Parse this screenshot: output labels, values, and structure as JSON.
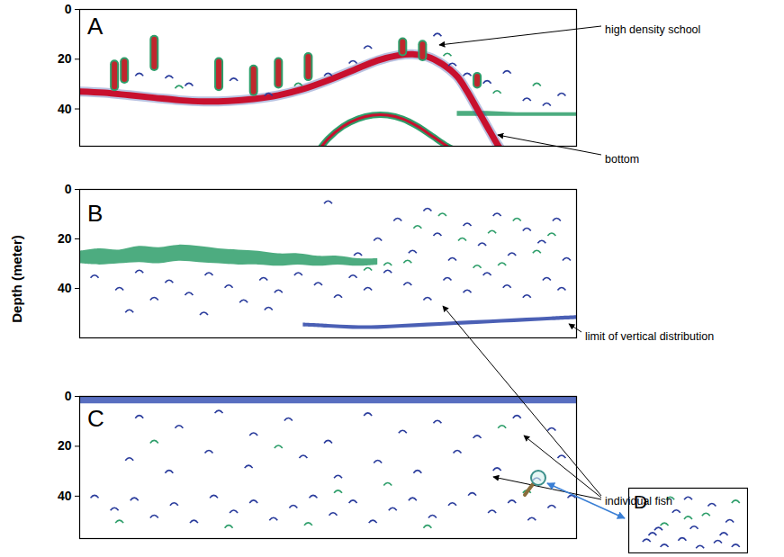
{
  "ylabel": "Depth (meter)",
  "annotations": [
    {
      "text": "high density school",
      "panel": "A"
    },
    {
      "text": "bottom",
      "panel": "A"
    },
    {
      "text": "limit of vertical distribution",
      "panel": "B"
    },
    {
      "text": "individual fish",
      "panel": "B"
    }
  ],
  "chart_data": [
    {
      "type": "echogram",
      "title": "A",
      "xlim": [
        0,
        100
      ],
      "ylim": [
        0,
        55
      ],
      "yticks": [
        0,
        20,
        40
      ],
      "tick_labels": "y",
      "bands": [
        {
          "color": "#2e9e6a",
          "x": [
            76,
            82,
            88,
            94,
            100
          ],
          "top": [
            41,
            41,
            41.5,
            41.5,
            41.5
          ],
          "bottom": [
            43,
            43,
            43,
            43,
            43
          ]
        }
      ],
      "lines": [
        {
          "color": "#c8102e",
          "line_style": "bold",
          "values": [
            [
              0,
              33
            ],
            [
              5,
              33.5
            ],
            [
              10,
              34.5
            ],
            [
              15,
              35.5
            ],
            [
              20,
              36.5
            ],
            [
              25,
              37
            ],
            [
              30,
              36.8
            ],
            [
              35,
              36
            ],
            [
              40,
              34.5
            ],
            [
              45,
              32
            ],
            [
              50,
              28.5
            ],
            [
              55,
              24.5
            ],
            [
              60,
              20.5
            ],
            [
              64,
              18.5
            ],
            [
              67,
              18
            ],
            [
              70,
              19
            ],
            [
              73,
              22
            ],
            [
              76,
              27
            ],
            [
              78,
              33
            ],
            [
              80,
              40
            ],
            [
              82,
              47
            ],
            [
              84,
              54
            ],
            [
              85,
              57
            ]
          ]
        },
        {
          "color": "#c8102e",
          "line_style": "solid",
          "values": [
            [
              48,
              57
            ],
            [
              50,
              52
            ],
            [
              53,
              47
            ],
            [
              56,
              44
            ],
            [
              59,
              42.5
            ],
            [
              62,
              42.5
            ],
            [
              65,
              44
            ],
            [
              68,
              47
            ],
            [
              71,
              51
            ],
            [
              74,
              55
            ],
            [
              76,
              57
            ]
          ]
        }
      ],
      "schools": {
        "color": "#c0272d",
        "values": [
          [
            7,
            22,
            31
          ],
          [
            9,
            21,
            28
          ],
          [
            15,
            12,
            23
          ],
          [
            28,
            21,
            31
          ],
          [
            35,
            24,
            33
          ],
          [
            40,
            21,
            30
          ],
          [
            46,
            19,
            27
          ],
          [
            65,
            13,
            17
          ],
          [
            69,
            14,
            19
          ],
          [
            80,
            27,
            30
          ]
        ]
      },
      "fish": [
        {
          "color": "#2a3c9c",
          "marker": "arc",
          "points": [
            [
              12,
              26
            ],
            [
              18,
              27
            ],
            [
              22,
              30
            ],
            [
              31,
              28
            ],
            [
              38,
              34
            ],
            [
              50,
              26
            ],
            [
              55,
              21
            ],
            [
              58,
              15
            ],
            [
              72,
              10
            ],
            [
              75,
              22
            ],
            [
              78,
              26
            ],
            [
              82,
              29
            ],
            [
              86,
              25
            ],
            [
              90,
              36
            ],
            [
              94,
              38
            ],
            [
              97,
              34
            ]
          ]
        },
        {
          "color": "#2e9e6a",
          "marker": "arc",
          "points": [
            [
              20,
              31
            ],
            [
              44,
              30
            ],
            [
              74,
              18
            ],
            [
              84,
              33
            ],
            [
              92,
              30
            ]
          ]
        }
      ]
    },
    {
      "type": "echogram",
      "title": "B",
      "xlim": [
        0,
        100
      ],
      "ylim": [
        0,
        60
      ],
      "yticks": [
        0,
        20,
        40
      ],
      "tick_labels": "y",
      "bands": [
        {
          "color": "#2e9e6a",
          "x": [
            0,
            4,
            8,
            12,
            16,
            20,
            24,
            28,
            32,
            36,
            40,
            44,
            48,
            52,
            56,
            60
          ],
          "top": [
            25,
            24,
            24.5,
            23,
            23.5,
            22.5,
            23,
            24,
            24.5,
            25,
            26,
            26,
            27,
            27,
            28,
            28
          ],
          "bottom": [
            30,
            30.5,
            30,
            29.5,
            30,
            29,
            29.5,
            30,
            30.5,
            30.5,
            31,
            30.5,
            31,
            30.5,
            31,
            30.5
          ]
        },
        {
          "color": "#2b44a8",
          "x": [
            45,
            50,
            55,
            60,
            65,
            70,
            75,
            80,
            85,
            90,
            95,
            100
          ],
          "top": [
            54,
            54.5,
            55,
            55,
            54.5,
            54,
            53.5,
            53,
            52.5,
            52,
            51.5,
            51
          ],
          "bottom": [
            55.5,
            56,
            56.5,
            56.5,
            56,
            55.5,
            55,
            54.5,
            54,
            53.5,
            53,
            52.5
          ]
        }
      ],
      "fish": [
        {
          "color": "#2a3c9c",
          "marker": "arc",
          "points": [
            [
              3,
              35
            ],
            [
              8,
              40
            ],
            [
              12,
              33
            ],
            [
              15,
              44
            ],
            [
              18,
              37
            ],
            [
              22,
              42
            ],
            [
              26,
              34
            ],
            [
              30,
              39
            ],
            [
              33,
              45
            ],
            [
              37,
              36
            ],
            [
              40,
              41
            ],
            [
              44,
              34
            ],
            [
              48,
              38
            ],
            [
              52,
              43
            ],
            [
              55,
              35
            ],
            [
              58,
              40
            ],
            [
              62,
              33
            ],
            [
              66,
              38
            ],
            [
              70,
              44
            ],
            [
              74,
              36
            ],
            [
              78,
              41
            ],
            [
              82,
              34
            ],
            [
              86,
              39
            ],
            [
              90,
              43
            ],
            [
              94,
              36
            ],
            [
              97,
              40
            ],
            [
              10,
              49
            ],
            [
              25,
              50
            ],
            [
              38,
              48
            ],
            [
              60,
              20
            ],
            [
              64,
              12
            ],
            [
              67,
              25
            ],
            [
              70,
              8
            ],
            [
              72,
              18
            ],
            [
              75,
              28
            ],
            [
              78,
              14
            ],
            [
              81,
              22
            ],
            [
              84,
              10
            ],
            [
              87,
              26
            ],
            [
              90,
              16
            ],
            [
              93,
              21
            ],
            [
              96,
              12
            ],
            [
              98,
              28
            ],
            [
              56,
              26
            ],
            [
              50,
              5
            ]
          ]
        },
        {
          "color": "#2e9e6a",
          "marker": "arc",
          "points": [
            [
              62,
              30
            ],
            [
              68,
              15
            ],
            [
              73,
              10
            ],
            [
              77,
              20
            ],
            [
              83,
              17
            ],
            [
              88,
              12
            ],
            [
              92,
              25
            ],
            [
              95,
              18
            ],
            [
              66,
              29
            ],
            [
              80,
              31
            ],
            [
              85,
              30
            ],
            [
              58,
              32
            ]
          ]
        }
      ]
    },
    {
      "type": "echogram",
      "title": "C",
      "xlim": [
        0,
        100
      ],
      "ylim": [
        0,
        57
      ],
      "yticks": [
        0,
        20,
        40
      ],
      "tick_labels": "y",
      "bands": [
        {
          "color": "#3b55b5",
          "x": [
            0,
            25,
            50,
            75,
            100
          ],
          "top": [
            0,
            0,
            0,
            0,
            0
          ],
          "bottom": [
            3,
            3,
            3,
            3,
            3
          ]
        }
      ],
      "fish": [
        {
          "color": "#2a3c9c",
          "marker": "arc",
          "points": [
            [
              12,
              8
            ],
            [
              20,
              12
            ],
            [
              28,
              6
            ],
            [
              35,
              15
            ],
            [
              42,
              9
            ],
            [
              50,
              18
            ],
            [
              58,
              7
            ],
            [
              65,
              14
            ],
            [
              72,
              10
            ],
            [
              80,
              16
            ],
            [
              88,
              8
            ],
            [
              95,
              13
            ],
            [
              10,
              25
            ],
            [
              18,
              30
            ],
            [
              26,
              22
            ],
            [
              34,
              28
            ],
            [
              45,
              24
            ],
            [
              52,
              32
            ],
            [
              60,
              26
            ],
            [
              68,
              30
            ],
            [
              76,
              22
            ],
            [
              84,
              29
            ],
            [
              92,
              33
            ],
            [
              97,
              24
            ],
            [
              3,
              40
            ],
            [
              7,
              45
            ],
            [
              11,
              41
            ],
            [
              15,
              48
            ],
            [
              19,
              43
            ],
            [
              23,
              50
            ],
            [
              27,
              40
            ],
            [
              31,
              46
            ],
            [
              35,
              42
            ],
            [
              39,
              49
            ],
            [
              43,
              44
            ],
            [
              47,
              40
            ],
            [
              51,
              47
            ],
            [
              55,
              42
            ],
            [
              59,
              50
            ],
            [
              63,
              45
            ],
            [
              67,
              41
            ],
            [
              71,
              48
            ],
            [
              75,
              43
            ],
            [
              79,
              39
            ],
            [
              83,
              46
            ],
            [
              87,
              42
            ],
            [
              91,
              49
            ],
            [
              95,
              44
            ],
            [
              99,
              40
            ]
          ]
        },
        {
          "color": "#2e9e6a",
          "marker": "arc",
          "points": [
            [
              15,
              18
            ],
            [
              40,
              20
            ],
            [
              62,
              35
            ],
            [
              85,
              12
            ],
            [
              30,
              52
            ],
            [
              52,
              38
            ],
            [
              70,
              52
            ],
            [
              90,
              38
            ],
            [
              8,
              50
            ],
            [
              46,
              51
            ]
          ]
        }
      ]
    },
    {
      "type": "inset",
      "title": "D",
      "xlim": [
        0,
        100
      ],
      "ylim": [
        0,
        100
      ],
      "tick_labels": false,
      "fish": [
        {
          "color": "#2a3c9c",
          "marker": "arc",
          "points": [
            [
              25,
              62
            ],
            [
              40,
              35
            ],
            [
              55,
              60
            ],
            [
              70,
              25
            ],
            [
              85,
              50
            ],
            [
              15,
              80
            ],
            [
              30,
              88
            ],
            [
              45,
              78
            ],
            [
              60,
              90
            ],
            [
              75,
              82
            ],
            [
              90,
              88
            ],
            [
              20,
              70
            ],
            [
              50,
              15
            ],
            [
              80,
              70
            ]
          ]
        },
        {
          "color": "#2e9e6a",
          "marker": "arc",
          "points": [
            [
              35,
              15
            ],
            [
              65,
              40
            ],
            [
              90,
              20
            ],
            [
              50,
              45
            ],
            [
              30,
              55
            ]
          ]
        }
      ]
    }
  ]
}
